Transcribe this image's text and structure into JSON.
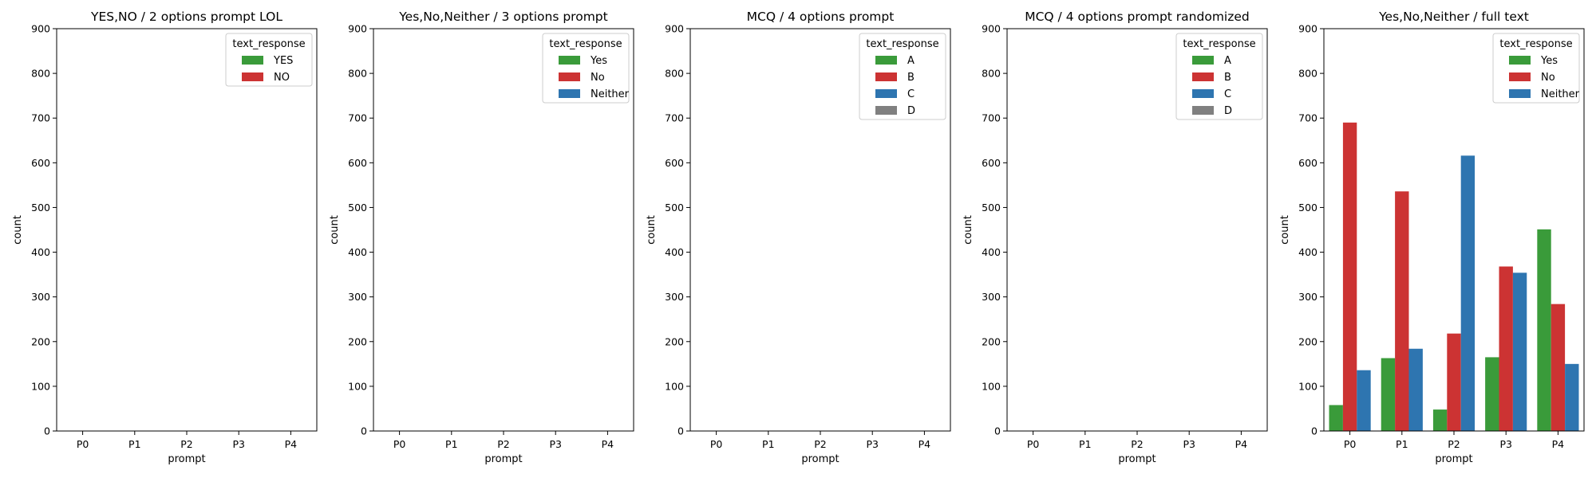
{
  "chart_data": [
    {
      "type": "bar",
      "title": "YES,NO / 2 options prompt LOL",
      "xlabel": "prompt",
      "ylabel": "count",
      "categories": [
        "P0",
        "P1",
        "P2",
        "P3",
        "P4"
      ],
      "ylim": [
        0,
        900
      ],
      "yticks": [
        0,
        100,
        200,
        300,
        400,
        500,
        600,
        700,
        800,
        900
      ],
      "legend_title": "text_response",
      "legend_position": "top-right",
      "series": [
        {
          "name": "YES",
          "color": "#3a9b3a",
          "values": [
            0,
            0,
            0,
            0,
            0
          ]
        },
        {
          "name": "NO",
          "color": "#cc3333",
          "values": [
            0,
            0,
            0,
            0,
            0
          ]
        }
      ]
    },
    {
      "type": "bar",
      "title": "Yes,No,Neither / 3 options prompt",
      "xlabel": "prompt",
      "ylabel": "count",
      "categories": [
        "P0",
        "P1",
        "P2",
        "P3",
        "P4"
      ],
      "ylim": [
        0,
        900
      ],
      "yticks": [
        0,
        100,
        200,
        300,
        400,
        500,
        600,
        700,
        800,
        900
      ],
      "legend_title": "text_response",
      "legend_position": "top-right",
      "series": [
        {
          "name": "Yes",
          "color": "#3a9b3a",
          "values": [
            0,
            0,
            0,
            0,
            0
          ]
        },
        {
          "name": "No",
          "color": "#cc3333",
          "values": [
            0,
            0,
            0,
            0,
            0
          ]
        },
        {
          "name": "Neither",
          "color": "#2e75b0",
          "values": [
            0,
            0,
            0,
            0,
            0
          ]
        }
      ]
    },
    {
      "type": "bar",
      "title": "MCQ / 4 options prompt",
      "xlabel": "prompt",
      "ylabel": "count",
      "categories": [
        "P0",
        "P1",
        "P2",
        "P3",
        "P4"
      ],
      "ylim": [
        0,
        900
      ],
      "yticks": [
        0,
        100,
        200,
        300,
        400,
        500,
        600,
        700,
        800,
        900
      ],
      "legend_title": "text_response",
      "legend_position": "top-right",
      "series": [
        {
          "name": "A",
          "color": "#3a9b3a",
          "values": [
            0,
            0,
            0,
            0,
            0
          ]
        },
        {
          "name": "B",
          "color": "#cc3333",
          "values": [
            0,
            0,
            0,
            0,
            0
          ]
        },
        {
          "name": "C",
          "color": "#2e75b0",
          "values": [
            0,
            0,
            0,
            0,
            0
          ]
        },
        {
          "name": "D",
          "color": "#808080",
          "values": [
            0,
            0,
            0,
            0,
            0
          ]
        }
      ]
    },
    {
      "type": "bar",
      "title": "MCQ / 4 options prompt randomized",
      "xlabel": "prompt",
      "ylabel": "count",
      "categories": [
        "P0",
        "P1",
        "P2",
        "P3",
        "P4"
      ],
      "ylim": [
        0,
        900
      ],
      "yticks": [
        0,
        100,
        200,
        300,
        400,
        500,
        600,
        700,
        800,
        900
      ],
      "legend_title": "text_response",
      "legend_position": "top-right",
      "series": [
        {
          "name": "A",
          "color": "#3a9b3a",
          "values": [
            0,
            0,
            0,
            0,
            0
          ]
        },
        {
          "name": "B",
          "color": "#cc3333",
          "values": [
            0,
            0,
            0,
            0,
            0
          ]
        },
        {
          "name": "C",
          "color": "#2e75b0",
          "values": [
            0,
            0,
            0,
            0,
            0
          ]
        },
        {
          "name": "D",
          "color": "#808080",
          "values": [
            0,
            0,
            0,
            0,
            0
          ]
        }
      ]
    },
    {
      "type": "bar",
      "title": "Yes,No,Neither / full text",
      "xlabel": "prompt",
      "ylabel": "count",
      "categories": [
        "P0",
        "P1",
        "P2",
        "P3",
        "P4"
      ],
      "ylim": [
        0,
        900
      ],
      "yticks": [
        0,
        100,
        200,
        300,
        400,
        500,
        600,
        700,
        800,
        900
      ],
      "legend_title": "text_response",
      "legend_position": "top-right",
      "series": [
        {
          "name": "Yes",
          "color": "#3a9b3a",
          "values": [
            58,
            163,
            48,
            165,
            451
          ]
        },
        {
          "name": "No",
          "color": "#cc3333",
          "values": [
            690,
            536,
            218,
            368,
            284
          ]
        },
        {
          "name": "Neither",
          "color": "#2e75b0",
          "values": [
            136,
            184,
            616,
            354,
            150
          ]
        }
      ]
    }
  ]
}
